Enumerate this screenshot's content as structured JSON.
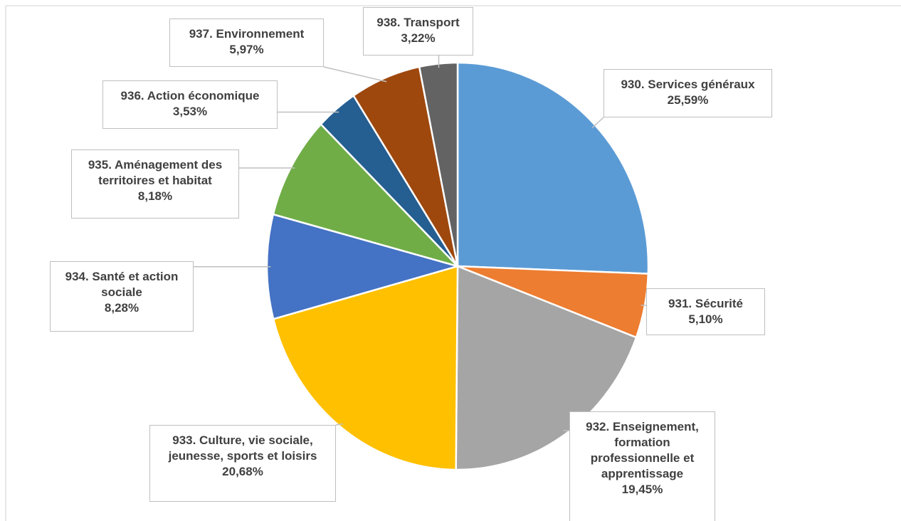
{
  "chart_data": {
    "type": "pie",
    "categories": [
      "930. Services généraux",
      "931. Sécurité",
      "932. Enseignement, formation professionnelle et apprentissage",
      "933. Culture, vie sociale, jeunesse, sports et loisirs",
      "934. Santé et action sociale",
      "935. Aménagement des territoires et habitat",
      "936. Action économique",
      "937. Environnement",
      "938. Transport"
    ],
    "values": [
      25.59,
      5.1,
      19.45,
      20.68,
      8.28,
      8.18,
      3.53,
      5.97,
      3.22
    ],
    "value_labels": [
      "25,59%",
      "5,10%",
      "19,45%",
      "20,68%",
      "8,28%",
      "8,18%",
      "3,53%",
      "5,97%",
      "3,22%"
    ],
    "colors": [
      "#5b9bd5",
      "#ed7d31",
      "#a5a5a5",
      "#ffc000",
      "#4472c4",
      "#70ad47",
      "#255e91",
      "#9e480e",
      "#636363"
    ]
  }
}
